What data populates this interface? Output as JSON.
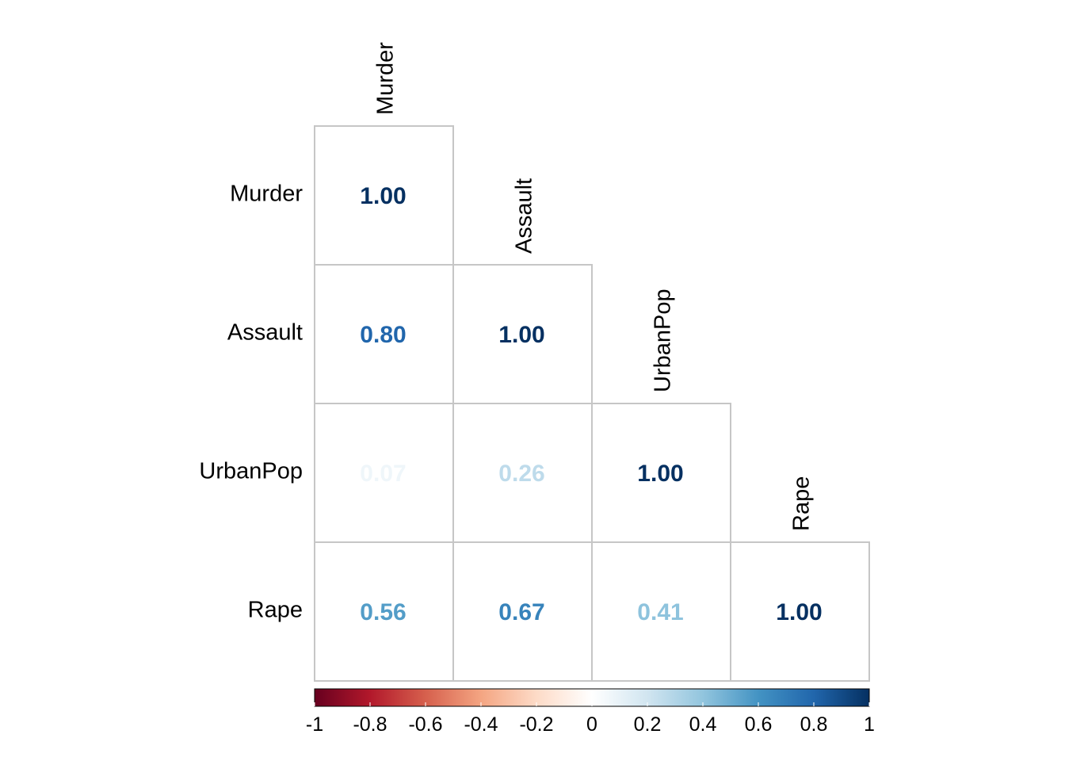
{
  "chart_data": {
    "type": "heatmap",
    "variables": [
      "Murder",
      "Assault",
      "UrbanPop",
      "Rape"
    ],
    "matrix_lower": [
      [
        1.0
      ],
      [
        0.8,
        1.0
      ],
      [
        0.07,
        0.26,
        1.0
      ],
      [
        0.56,
        0.67,
        0.41,
        1.0
      ]
    ],
    "value_labels": [
      [
        "1.00"
      ],
      [
        "0.80",
        "1.00"
      ],
      [
        "0.07",
        "0.26",
        "1.00"
      ],
      [
        "0.56",
        "0.67",
        "0.41",
        "1.00"
      ]
    ],
    "color_scale": {
      "range": [
        -1,
        1
      ],
      "ticks": [
        "-1",
        "-0.8",
        "-0.6",
        "-0.4",
        "-0.2",
        "0",
        "0.2",
        "0.4",
        "0.6",
        "0.8",
        "1"
      ],
      "palette": [
        "#67001F",
        "#B2182B",
        "#D6604D",
        "#F4A582",
        "#FDDBC7",
        "#FFFFFF",
        "#D1E5F0",
        "#92C5DE",
        "#4393C3",
        "#2166AC",
        "#053061"
      ]
    },
    "legend": "bottom",
    "grid": true
  }
}
